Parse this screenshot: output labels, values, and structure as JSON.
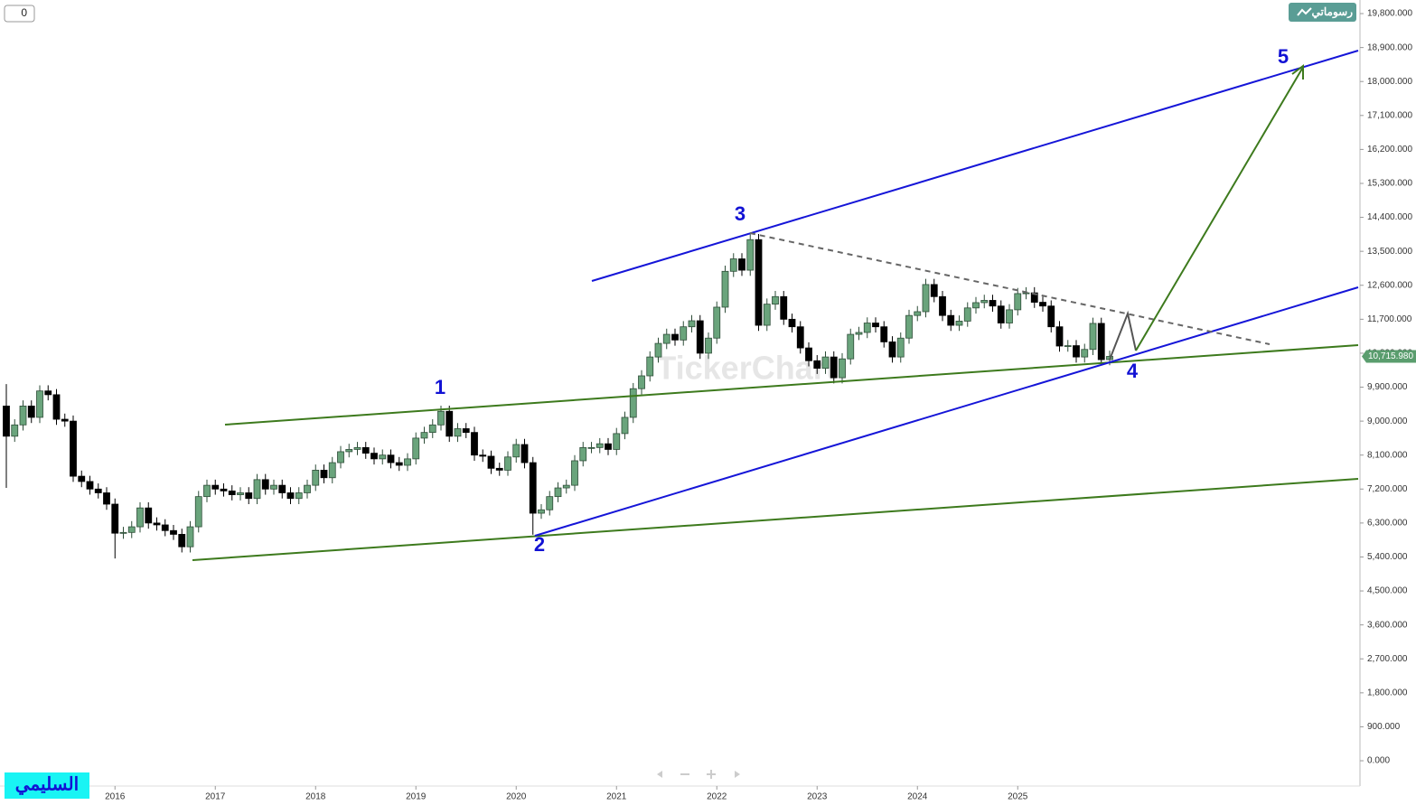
{
  "toolbar": {
    "counter": "0",
    "button": "رسوماتي"
  },
  "watermark": "TickerChart",
  "author": "السليمي",
  "chart_data": {
    "type": "candlestick",
    "up_color": "#6aa47c",
    "down_color": "#000000",
    "categories": [
      null,
      null,
      null,
      null,
      null,
      null,
      null,
      null,
      null,
      null,
      null,
      null,
      null,
      "2016",
      null,
      null,
      null,
      null,
      null,
      null,
      null,
      null,
      null,
      null,
      null,
      "2017",
      null,
      null,
      null,
      null,
      null,
      null,
      null,
      null,
      null,
      null,
      null,
      "2018",
      null,
      null,
      null,
      null,
      null,
      null,
      null,
      null,
      null,
      null,
      null,
      "2019",
      null,
      null,
      null,
      null,
      null,
      null,
      null,
      null,
      null,
      null,
      null,
      "2020",
      null,
      null,
      null,
      null,
      null,
      null,
      null,
      null,
      null,
      null,
      null,
      "2021",
      null,
      null,
      null,
      null,
      null,
      null,
      null,
      null,
      null,
      null,
      null,
      "2022",
      null,
      null,
      null,
      null,
      null,
      null,
      null,
      null,
      null,
      null,
      null,
      "2023",
      null,
      null,
      null,
      null,
      null,
      null,
      null,
      null,
      null,
      null,
      null,
      "2024",
      null,
      null,
      null,
      null,
      null,
      null,
      null,
      null,
      null,
      null,
      null,
      "2025",
      null,
      null,
      null,
      null,
      null,
      null,
      null,
      null,
      null,
      null,
      null
    ],
    "open": [
      9400,
      8600,
      8900,
      9400,
      9100,
      9800,
      9700,
      9050,
      9000,
      7540,
      7400,
      7200,
      7100,
      6800,
      6030,
      6050,
      6200,
      6700,
      6300,
      6250,
      6100,
      6000,
      5670,
      6200,
      7000,
      7300,
      7200,
      7150,
      7050,
      7100,
      6950,
      7450,
      7200,
      7300,
      7100,
      6950,
      7100,
      7300,
      7700,
      7500,
      7900,
      8190,
      8250,
      8300,
      8150,
      8000,
      8100,
      7900,
      7830,
      8000,
      8550,
      8700,
      8900,
      9260,
      8600,
      8800,
      8700,
      8100,
      8070,
      7750,
      7700,
      8050,
      8380,
      7900,
      6560,
      6650,
      7000,
      7230,
      7300,
      7950,
      8300,
      8300,
      8400,
      8250,
      8670,
      9100,
      9860,
      10200,
      10700,
      11060,
      11300,
      11150,
      11500,
      11660,
      10800,
      11200,
      12020,
      12970,
      13300,
      13000,
      13810,
      11540,
      12100,
      12300,
      11700,
      11500,
      10940,
      10600,
      10400,
      10700,
      10150,
      10650,
      11300,
      11350,
      11600,
      11500,
      11100,
      10700,
      11200,
      11800,
      11900,
      12620,
      12300,
      11800,
      11540,
      11650,
      12000,
      12140,
      12200,
      12050,
      11600,
      11950,
      12380,
      12400,
      12150,
      12050,
      11500,
      10990,
      11000,
      10700,
      10900,
      11590,
      10630
    ],
    "high": [
      9980,
      9050,
      9550,
      9550,
      9950,
      9950,
      9850,
      9200,
      9150,
      7690,
      7550,
      7350,
      7250,
      6950,
      6200,
      6350,
      6850,
      6850,
      6450,
      6400,
      6250,
      6150,
      6350,
      7150,
      7450,
      7450,
      7350,
      7300,
      7250,
      7250,
      7600,
      7600,
      7450,
      7450,
      7250,
      7250,
      7450,
      7850,
      7850,
      8050,
      8340,
      8400,
      8450,
      8450,
      8300,
      8250,
      8250,
      8050,
      8150,
      8700,
      8850,
      9050,
      9410,
      9410,
      8950,
      8950,
      8850,
      8250,
      8220,
      7900,
      8200,
      8530,
      8530,
      8050,
      6800,
      7150,
      7380,
      7450,
      8100,
      8450,
      8450,
      8550,
      8550,
      8820,
      9250,
      10010,
      10350,
      10850,
      11210,
      11450,
      11450,
      11650,
      11810,
      11810,
      11350,
      12170,
      13120,
      13450,
      13450,
      13950,
      13960,
      12250,
      12450,
      12450,
      11850,
      11650,
      11090,
      10750,
      10850,
      10850,
      10800,
      11450,
      11500,
      11750,
      11750,
      11650,
      11250,
      11350,
      11950,
      12050,
      12770,
      12770,
      12450,
      11950,
      11800,
      12150,
      12290,
      12350,
      12350,
      12200,
      12100,
      12530,
      12550,
      12550,
      12300,
      12200,
      11650,
      11150,
      11150,
      11050,
      11740,
      11740,
      10866
    ],
    "low": [
      7230,
      8450,
      8750,
      8950,
      8950,
      9550,
      8900,
      8850,
      7390,
      7250,
      7050,
      6950,
      6650,
      5360,
      5880,
      5900,
      6050,
      6150,
      6100,
      5950,
      5850,
      5520,
      5520,
      6050,
      6850,
      7050,
      7000,
      6900,
      6900,
      6800,
      6800,
      7050,
      7050,
      6950,
      6800,
      6800,
      6950,
      7150,
      7350,
      7350,
      7750,
      8040,
      8100,
      8000,
      7850,
      7850,
      7750,
      7680,
      7680,
      7850,
      8400,
      8550,
      8750,
      8450,
      8450,
      8550,
      7950,
      7920,
      7600,
      7550,
      7550,
      7900,
      7750,
      5990,
      6410,
      6500,
      6850,
      7080,
      7150,
      7800,
      8150,
      8150,
      8100,
      8100,
      8520,
      8950,
      9710,
      10050,
      10550,
      10910,
      11000,
      11000,
      11350,
      10650,
      10650,
      11050,
      11870,
      12820,
      12850,
      12850,
      11390,
      11390,
      11950,
      11550,
      11350,
      10790,
      10450,
      10250,
      10250,
      10000,
      10000,
      10500,
      11150,
      11200,
      11350,
      10950,
      10550,
      10550,
      11050,
      11650,
      11750,
      12150,
      11650,
      11390,
      11390,
      11500,
      11850,
      11990,
      11900,
      11450,
      11450,
      11800,
      12230,
      12000,
      11900,
      11350,
      10840,
      10840,
      10550,
      10550,
      10750,
      10480,
      10480
    ],
    "close": [
      8600,
      8900,
      9400,
      9100,
      9800,
      9700,
      9050,
      9000,
      7540,
      7400,
      7200,
      7100,
      6800,
      6030,
      6050,
      6200,
      6700,
      6300,
      6250,
      6100,
      6000,
      5670,
      6200,
      7000,
      7300,
      7200,
      7150,
      7050,
      7100,
      6950,
      7450,
      7200,
      7300,
      7100,
      6950,
      7100,
      7300,
      7700,
      7500,
      7900,
      8190,
      8250,
      8300,
      8150,
      8000,
      8100,
      7900,
      7830,
      8000,
      8550,
      8700,
      8900,
      9260,
      8600,
      8800,
      8700,
      8100,
      8070,
      7750,
      7700,
      8050,
      8380,
      7900,
      6560,
      6650,
      7000,
      7230,
      7300,
      7950,
      8300,
      8300,
      8400,
      8250,
      8670,
      9100,
      9860,
      10200,
      10700,
      11060,
      11300,
      11150,
      11500,
      11660,
      10800,
      11200,
      12020,
      12970,
      13300,
      13000,
      13810,
      11540,
      12100,
      12300,
      11700,
      11500,
      10940,
      10600,
      10400,
      10700,
      10150,
      10650,
      11300,
      11350,
      11600,
      11500,
      11100,
      10700,
      11200,
      11800,
      11900,
      12620,
      12300,
      11800,
      11540,
      11650,
      12000,
      12140,
      12200,
      12050,
      11600,
      11950,
      12380,
      12400,
      12150,
      12050,
      11500,
      10990,
      11000,
      10700,
      10900,
      11590,
      10630,
      10716
    ],
    "ylim": [
      -670,
      20160
    ],
    "yticks": [
      {
        "value": 0,
        "label": "0.000"
      },
      {
        "value": 900,
        "label": "900.000"
      },
      {
        "value": 1800,
        "label": "1,800.000"
      },
      {
        "value": 2700,
        "label": "2,700.000"
      },
      {
        "value": 3600,
        "label": "3,600.000"
      },
      {
        "value": 4500,
        "label": "4,500.000"
      },
      {
        "value": 5400,
        "label": "5,400.000"
      },
      {
        "value": 6300,
        "label": "6,300.000"
      },
      {
        "value": 7200,
        "label": "7,200.000"
      },
      {
        "value": 8100,
        "label": "8,100.000"
      },
      {
        "value": 9000,
        "label": "9,000.000"
      },
      {
        "value": 9900,
        "label": "9,900.000"
      },
      {
        "value": 10800,
        "label": "10,800.000"
      },
      {
        "value": 11700,
        "label": "11,700.000"
      },
      {
        "value": 12600,
        "label": "12,600.000"
      },
      {
        "value": 13500,
        "label": "13,500.000"
      },
      {
        "value": 14400,
        "label": "14,400.000"
      },
      {
        "value": 15300,
        "label": "15,300.000"
      },
      {
        "value": 16200,
        "label": "16,200.000"
      },
      {
        "value": 17100,
        "label": "17,100.000"
      },
      {
        "value": 18000,
        "label": "18,000.000"
      },
      {
        "value": 18900,
        "label": "18,900.000"
      },
      {
        "value": 19800,
        "label": "19,800.000"
      }
    ],
    "last_price": {
      "value": 10715.98,
      "label": "10,715.980"
    },
    "annotations": [
      "1",
      "2",
      "3",
      "4",
      "5"
    ]
  }
}
